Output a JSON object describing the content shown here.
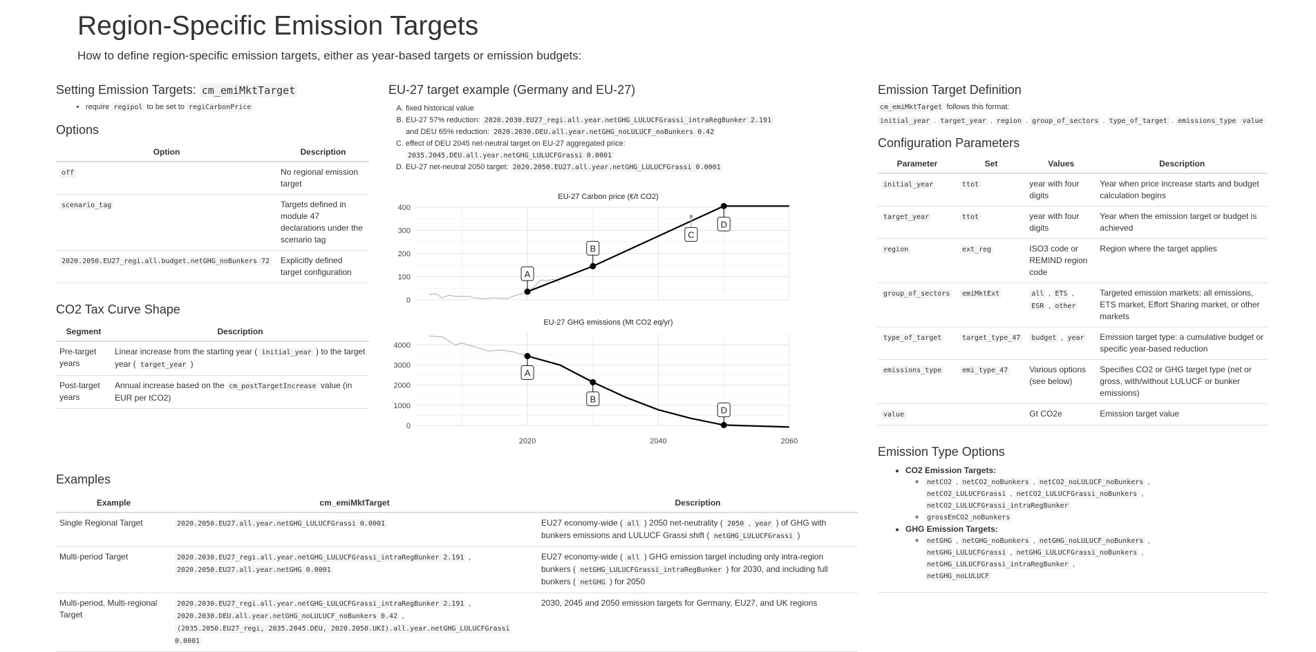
{
  "title": "Region-Specific Emission Targets",
  "subtitle": "How to define region-specific emission targets, either as year-based targets or emission budgets:",
  "setting": {
    "heading": "Setting Emission Targets:",
    "heading_code": "cm_emiMktTarget",
    "bullet_pre": "require",
    "bullet_code1": "regipol",
    "bullet_mid": "to be set to",
    "bullet_code2": "regiCarbonPrice"
  },
  "options": {
    "heading": "Options",
    "columns": [
      "Option",
      "Description"
    ],
    "rows": [
      {
        "option": "off",
        "description": "No regional emission target"
      },
      {
        "option": "scenario_tag",
        "description": "Targets defined in module 47 declarations under the scenario tag"
      },
      {
        "option": "2020.2050.EU27_regi.all.budget.netGHG_noBunkers 72",
        "description": "Explicitly defined target configuration"
      }
    ]
  },
  "curve": {
    "heading": "CO2 Tax Curve Shape",
    "columns": [
      "Segment",
      "Description"
    ],
    "rows": [
      {
        "segment": "Pre-target years",
        "d1": "Linear increase from the starting year (",
        "c1": "initial_year",
        "d2": ") to the target year (",
        "c2": "target_year",
        "d3": ")"
      },
      {
        "segment": "Post-target years",
        "d1": "Annual increase based on the",
        "c1": "cm_postTargetIncrease",
        "d2": "value (in EUR per tCO2)"
      }
    ]
  },
  "eu27": {
    "heading": "EU-27 target example (Germany and EU-27)",
    "a": "fixed historical value",
    "b_text1": "EU-27 57% reduction:",
    "b_code1": "2020.2030.EU27_regi.all.year.netGHG_LULUCFGrassi_intraRegBunker 2.191",
    "b_text2": "and DEU 65% reduction:",
    "b_code2": "2020.2030.DEU.all.year.netGHG_noLULUCF_noBunkers 0.42",
    "c_text": "effect of DEU 2045 net-neutral target on EU-27 aggregated price:",
    "c_code": "2035.2045.DEU.all.year.netGHG_LULUCFGrassi 0.0001",
    "d_text": "EU-27 net-neutral 2050 target:",
    "d_code": "2020.2050.EU27.all.year.netGHG_LULUCFGrassi 0.0001"
  },
  "chart_data": [
    {
      "type": "line",
      "title": "EU-27 Carbon price (€/t CO2)",
      "ylim": [
        0,
        400
      ],
      "yticks": [
        0,
        100,
        200,
        300,
        400
      ],
      "xlim": [
        2003,
        2060
      ],
      "series": [
        {
          "style": "history-grey",
          "x": [
            2005,
            2006,
            2007,
            2008,
            2009,
            2010,
            2011,
            2012,
            2013,
            2014,
            2015,
            2016,
            2017,
            2018,
            2019,
            2020,
            2021,
            2022,
            2023,
            2024,
            2025
          ],
          "values": [
            22,
            26,
            8,
            20,
            14,
            15,
            14,
            8,
            5,
            6,
            8,
            6,
            6,
            17,
            25,
            30,
            55,
            85,
            83,
            88,
            75
          ]
        },
        {
          "style": "model-black",
          "x": [
            2020,
            2030,
            2050,
            2060
          ],
          "values": [
            35,
            145,
            405,
            405
          ]
        }
      ],
      "points": [
        {
          "label": "A",
          "x": 2020,
          "y": 35
        },
        {
          "label": "B",
          "x": 2030,
          "y": 145
        },
        {
          "label": "C",
          "x": 2045,
          "y": 360
        },
        {
          "label": "D",
          "x": 2050,
          "y": 405
        }
      ]
    },
    {
      "type": "line",
      "title": "EU-27 GHG emissions (Mt CO2 eq/yr)",
      "ylim": [
        0,
        4600
      ],
      "yticks": [
        0,
        1000,
        2000,
        3000,
        4000
      ],
      "xlim": [
        2003,
        2060
      ],
      "xticks": [
        2020,
        2040,
        2060
      ],
      "series": [
        {
          "style": "history-grey",
          "x": [
            2005,
            2007,
            2009,
            2010,
            2012,
            2014,
            2016,
            2018,
            2020
          ],
          "values": [
            4450,
            4400,
            4000,
            4100,
            3900,
            3700,
            3750,
            3650,
            3450
          ]
        },
        {
          "style": "model-black",
          "x": [
            2020,
            2025,
            2030,
            2035,
            2040,
            2045,
            2050,
            2060
          ],
          "values": [
            3450,
            3000,
            2150,
            1400,
            780,
            350,
            20,
            -80
          ]
        }
      ],
      "points": [
        {
          "label": "A",
          "x": 2020,
          "y": 3450
        },
        {
          "label": "B",
          "x": 2030,
          "y": 2150
        },
        {
          "label": "D",
          "x": 2050,
          "y": 20
        }
      ]
    }
  ],
  "definition": {
    "heading": "Emission Target Definition",
    "code": "cm_emiMktTarget",
    "text": "follows this format:",
    "format": [
      "initial_year",
      "target_year",
      "region",
      "group_of_sectors",
      "type_of_target",
      "emissions_type",
      "value"
    ]
  },
  "config": {
    "heading": "Configuration Parameters",
    "columns": [
      "Parameter",
      "Set",
      "Values",
      "Description"
    ],
    "rows": [
      {
        "param": "initial_year",
        "set": "ttot",
        "values": "year with four digits",
        "description": "Year when price increase starts and budget calculation begins"
      },
      {
        "param": "target_year",
        "set": "ttot",
        "values": "year with four digits",
        "description": "Year when the emission target or budget is achieved"
      },
      {
        "param": "region",
        "set": "ext_reg",
        "values": "ISO3 code or REMIND region code",
        "description": "Region where the target applies"
      },
      {
        "param": "group_of_sectors",
        "set": "emiMktExt",
        "values_codes": [
          "all",
          "ETS",
          "ESR",
          "other"
        ],
        "description": "Targeted emission markets: all emissions, ETS market, Effort Sharing market, or other markets"
      },
      {
        "param": "type_of_target",
        "set": "target_type_47",
        "values_codes": [
          "budget",
          "year"
        ],
        "description": "Emission target type: a cumulative budget or specific year-based reduction"
      },
      {
        "param": "emissions_type",
        "set": "emi_type_47",
        "values": "Various options (see below)",
        "description": "Specifies CO2 or GHG target type (net or gross, with/without LULUCF or bunker emissions)"
      },
      {
        "param": "value",
        "set": "",
        "values": "Gt CO2e",
        "description": "Emission target value"
      }
    ]
  },
  "emitypes": {
    "heading": "Emission Type Options",
    "co2_label": "CO2 Emission Targets:",
    "co2_codes": [
      "netCO2",
      "netCO2_noBunkers",
      "netCO2_noLULUCF_noBunkers",
      "netCO2_LULUCFGrassi",
      "netCO2_LULUCFGrassi_noBunkers",
      "netCO2_LULUCFGrassi_intraRegBunker"
    ],
    "co2_gross": "grossEnCO2_noBunkers",
    "ghg_label": "GHG Emission Targets:",
    "ghg_codes": [
      "netGHG",
      "netGHG_noBunkers",
      "netGHG_noLULUCF_noBunkers",
      "netGHG_LULUCFGrassi",
      "netGHG_LULUCFGrassi_noBunkers",
      "netGHG_LULUCFGrassi_intraRegBunker",
      "netGHG_noLULUCF"
    ]
  },
  "examples": {
    "heading": "Examples",
    "columns": [
      "Example",
      "cm_emiMktTarget",
      "Description"
    ],
    "r1": {
      "name": "Single Regional Target",
      "code": "2020.2050.EU27.all.year.netGHG_LULUCFGrassi 0.0001",
      "t1": "EU27 economy-wide (",
      "c1": "all",
      "t2": ") 2050 net-neutrality (",
      "c2": "2050",
      "t3": ",",
      "c3": "year",
      "t4": ") of GHG with bunkers emissions and LULUCF Grassi shift (",
      "c4": "netGHG_LULUCFGrassi",
      "t5": ")"
    },
    "r2": {
      "name": "Multi-period Target",
      "code1": "2020.2030.EU27_regi.all.year.netGHG_LULUCFGrassi_intraRegBunker 2.191",
      "code2": "2020.2050.EU27.all.year.netGHG 0.0001",
      "t1": "EU27 economy-wide (",
      "c1": "all",
      "t2": ") GHG emission target including only intra-region bunkers (",
      "c2": "netGHG_LULUCFGrassi_intraRegBunker",
      "t3": ") for 2030, and including full bunkers (",
      "c3": "netGHG",
      "t4": ") for 2050"
    },
    "r3": {
      "name": "Multi-period, Multi-regional Target",
      "code1": "2020.2030.EU27_regi.all.year.netGHG_LULUCFGrassi_intraRegBunker 2.191",
      "code2": "2020.2030.DEU.all.year.netGHG_noLULUCF_noBunkers 0.42",
      "code3": "(2035.2050.EU27_regi, 2035.2045.DEU, 2020.2050.UKI).all.year.netGHG_LULUCFGrassi 0.0001",
      "description": "2030, 2045 and 2050 emission targets for Germany, EU27, and UK regions"
    }
  }
}
